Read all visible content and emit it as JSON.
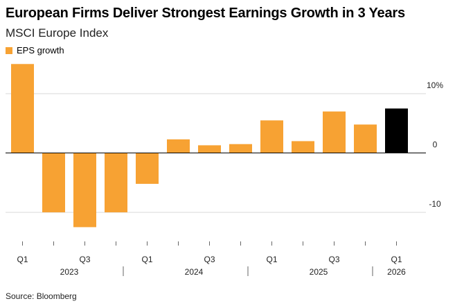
{
  "title": "European Firms Deliver Strongest Earnings Growth in 3 Years",
  "subtitle": "MSCI Europe Index",
  "source": "Source: Bloomberg",
  "chart_data": {
    "type": "bar",
    "series": [
      {
        "name": "EPS growth",
        "color": "#f7a233",
        "values": [
          15.0,
          -10.0,
          -12.5,
          -10.0,
          -5.2,
          2.3,
          1.3,
          1.5,
          5.5,
          2.0,
          7.0,
          4.8,
          7.5
        ],
        "highlight_last_color": "#000000"
      }
    ],
    "quarter_labels": [
      "Q1",
      "",
      "Q3",
      "",
      "Q1",
      "",
      "Q3",
      "",
      "Q1",
      "",
      "Q3",
      "",
      "Q1"
    ],
    "year_labels": [
      "2023",
      "2024",
      "2025",
      "2026"
    ],
    "year_spans": [
      [
        0,
        3
      ],
      [
        4,
        7
      ],
      [
        8,
        11
      ],
      [
        12,
        12
      ]
    ],
    "y_ticks": [
      {
        "value": 10,
        "label": "10%"
      },
      {
        "value": 0,
        "label": "0"
      },
      {
        "value": -10,
        "label": "-10"
      }
    ],
    "ylim": [
      -13.5,
      15.5
    ],
    "grid": true,
    "legend_position": "top-left"
  }
}
